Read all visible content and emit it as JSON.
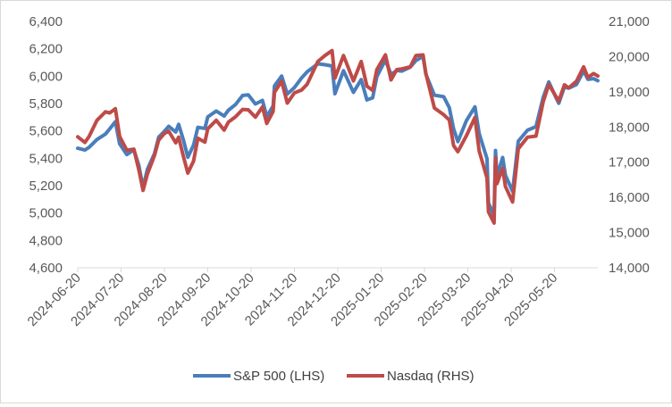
{
  "chart_data": {
    "type": "line",
    "x_tick_labels": [
      "2024-06-20",
      "2024-07-20",
      "2024-08-20",
      "2024-09-20",
      "2024-10-20",
      "2024-11-20",
      "2024-12-20",
      "2025-01-20",
      "2025-02-20",
      "2025-03-20",
      "2025-04-20",
      "2025-05-20"
    ],
    "y_left": {
      "min": 4600,
      "max": 6400,
      "step": 200,
      "tick_labels": [
        "4,600",
        "4,800",
        "5,000",
        "5,200",
        "5,400",
        "5,600",
        "5,800",
        "6,000",
        "6,200",
        "6,400"
      ]
    },
    "y_right": {
      "min": 14000,
      "max": 21000,
      "step": 1000,
      "tick_labels": [
        "14,000",
        "15,000",
        "16,000",
        "17,000",
        "18,000",
        "19,000",
        "20,000",
        "21,000"
      ]
    },
    "grid": false,
    "legend_position": "bottom",
    "series": [
      {
        "name": "S&P 500 (LHS)",
        "axis": "left",
        "color": "#4a7ebb",
        "points": [
          [
            "2024-06-20",
            5473
          ],
          [
            "2024-06-25",
            5460
          ],
          [
            "2024-06-28",
            5480
          ],
          [
            "2024-07-03",
            5537
          ],
          [
            "2024-07-09",
            5577
          ],
          [
            "2024-07-12",
            5615
          ],
          [
            "2024-07-16",
            5667
          ],
          [
            "2024-07-19",
            5505
          ],
          [
            "2024-07-24",
            5427
          ],
          [
            "2024-07-29",
            5463
          ],
          [
            "2024-08-02",
            5346
          ],
          [
            "2024-08-05",
            5186
          ],
          [
            "2024-08-08",
            5319
          ],
          [
            "2024-08-13",
            5434
          ],
          [
            "2024-08-16",
            5554
          ],
          [
            "2024-08-20",
            5597
          ],
          [
            "2024-08-23",
            5634
          ],
          [
            "2024-08-28",
            5592
          ],
          [
            "2024-08-30",
            5648
          ],
          [
            "2024-09-03",
            5528
          ],
          [
            "2024-09-06",
            5408
          ],
          [
            "2024-09-10",
            5496
          ],
          [
            "2024-09-13",
            5626
          ],
          [
            "2024-09-18",
            5618
          ],
          [
            "2024-09-20",
            5702
          ],
          [
            "2024-09-26",
            5745
          ],
          [
            "2024-10-01",
            5709
          ],
          [
            "2024-10-04",
            5751
          ],
          [
            "2024-10-09",
            5792
          ],
          [
            "2024-10-14",
            5859
          ],
          [
            "2024-10-18",
            5864
          ],
          [
            "2024-10-23",
            5797
          ],
          [
            "2024-10-28",
            5823
          ],
          [
            "2024-10-31",
            5705
          ],
          [
            "2024-11-05",
            5782
          ],
          [
            "2024-11-06",
            5929
          ],
          [
            "2024-11-11",
            6001
          ],
          [
            "2024-11-15",
            5870
          ],
          [
            "2024-11-20",
            5917
          ],
          [
            "2024-11-25",
            5987
          ],
          [
            "2024-11-29",
            6032
          ],
          [
            "2024-12-06",
            6090
          ],
          [
            "2024-12-11",
            6084
          ],
          [
            "2024-12-16",
            6074
          ],
          [
            "2024-12-18",
            5872
          ],
          [
            "2024-12-24",
            6040
          ],
          [
            "2024-12-31",
            5882
          ],
          [
            "2025-01-06",
            5975
          ],
          [
            "2025-01-10",
            5827
          ],
          [
            "2025-01-14",
            5842
          ],
          [
            "2025-01-17",
            5997
          ],
          [
            "2025-01-23",
            6119
          ],
          [
            "2025-01-27",
            6012
          ],
          [
            "2025-01-31",
            6041
          ],
          [
            "2025-02-04",
            6037
          ],
          [
            "2025-02-10",
            6066
          ],
          [
            "2025-02-14",
            6115
          ],
          [
            "2025-02-19",
            6144
          ],
          [
            "2025-02-21",
            6013
          ],
          [
            "2025-02-27",
            5861
          ],
          [
            "2025-03-03",
            5850
          ],
          [
            "2025-03-07",
            5770
          ],
          [
            "2025-03-10",
            5615
          ],
          [
            "2025-03-13",
            5522
          ],
          [
            "2025-03-19",
            5675
          ],
          [
            "2025-03-25",
            5776
          ],
          [
            "2025-03-28",
            5581
          ],
          [
            "2025-04-03",
            5397
          ],
          [
            "2025-04-04",
            5074
          ],
          [
            "2025-04-08",
            4983
          ],
          [
            "2025-04-09",
            5457
          ],
          [
            "2025-04-10",
            5268
          ],
          [
            "2025-04-14",
            5406
          ],
          [
            "2025-04-16",
            5276
          ],
          [
            "2025-04-21",
            5158
          ],
          [
            "2025-04-25",
            5525
          ],
          [
            "2025-05-01",
            5605
          ],
          [
            "2025-05-07",
            5631
          ],
          [
            "2025-05-12",
            5844
          ],
          [
            "2025-05-16",
            5958
          ],
          [
            "2025-05-21",
            5845
          ],
          [
            "2025-05-23",
            5802
          ],
          [
            "2025-05-27",
            5921
          ],
          [
            "2025-05-30",
            5912
          ],
          [
            "2025-06-05",
            5939
          ],
          [
            "2025-06-10",
            6039
          ],
          [
            "2025-06-13",
            5977
          ],
          [
            "2025-06-17",
            5982
          ],
          [
            "2025-06-20",
            5967
          ]
        ]
      },
      {
        "name": "Nasdaq (RHS)",
        "axis": "right",
        "color": "#be4b48",
        "points": [
          [
            "2024-06-20",
            17720
          ],
          [
            "2024-06-25",
            17560
          ],
          [
            "2024-06-28",
            17730
          ],
          [
            "2024-07-03",
            18190
          ],
          [
            "2024-07-09",
            18430
          ],
          [
            "2024-07-12",
            18400
          ],
          [
            "2024-07-16",
            18520
          ],
          [
            "2024-07-19",
            17730
          ],
          [
            "2024-07-24",
            17340
          ],
          [
            "2024-07-29",
            17370
          ],
          [
            "2024-08-02",
            16780
          ],
          [
            "2024-08-05",
            16200
          ],
          [
            "2024-08-08",
            16660
          ],
          [
            "2024-08-13",
            17190
          ],
          [
            "2024-08-16",
            17630
          ],
          [
            "2024-08-20",
            17820
          ],
          [
            "2024-08-23",
            17880
          ],
          [
            "2024-08-28",
            17550
          ],
          [
            "2024-08-30",
            17710
          ],
          [
            "2024-09-03",
            17140
          ],
          [
            "2024-09-06",
            16690
          ],
          [
            "2024-09-10",
            17030
          ],
          [
            "2024-09-13",
            17680
          ],
          [
            "2024-09-18",
            17570
          ],
          [
            "2024-09-20",
            17950
          ],
          [
            "2024-09-26",
            18190
          ],
          [
            "2024-10-01",
            17910
          ],
          [
            "2024-10-04",
            18140
          ],
          [
            "2024-10-09",
            18290
          ],
          [
            "2024-10-14",
            18500
          ],
          [
            "2024-10-18",
            18490
          ],
          [
            "2024-10-23",
            18280
          ],
          [
            "2024-10-28",
            18570
          ],
          [
            "2024-10-31",
            18100
          ],
          [
            "2024-11-05",
            18440
          ],
          [
            "2024-11-06",
            18990
          ],
          [
            "2024-11-11",
            19300
          ],
          [
            "2024-11-15",
            18680
          ],
          [
            "2024-11-20",
            18970
          ],
          [
            "2024-11-25",
            19050
          ],
          [
            "2024-11-29",
            19220
          ],
          [
            "2024-12-06",
            19860
          ],
          [
            "2024-12-11",
            20030
          ],
          [
            "2024-12-16",
            20170
          ],
          [
            "2024-12-18",
            19390
          ],
          [
            "2024-12-24",
            20030
          ],
          [
            "2024-12-31",
            19310
          ],
          [
            "2025-01-06",
            19860
          ],
          [
            "2025-01-10",
            19160
          ],
          [
            "2025-01-14",
            19040
          ],
          [
            "2025-01-17",
            19630
          ],
          [
            "2025-01-23",
            20050
          ],
          [
            "2025-01-27",
            19340
          ],
          [
            "2025-01-31",
            19630
          ],
          [
            "2025-02-04",
            19650
          ],
          [
            "2025-02-10",
            19710
          ],
          [
            "2025-02-14",
            20030
          ],
          [
            "2025-02-19",
            20050
          ],
          [
            "2025-02-21",
            19520
          ],
          [
            "2025-02-27",
            18540
          ],
          [
            "2025-03-03",
            18350
          ],
          [
            "2025-03-07",
            18200
          ],
          [
            "2025-03-10",
            17470
          ],
          [
            "2025-03-13",
            17300
          ],
          [
            "2025-03-19",
            17750
          ],
          [
            "2025-03-25",
            18270
          ],
          [
            "2025-03-28",
            17320
          ],
          [
            "2025-04-03",
            16550
          ],
          [
            "2025-04-04",
            15590
          ],
          [
            "2025-04-08",
            15270
          ],
          [
            "2025-04-09",
            17120
          ],
          [
            "2025-04-10",
            16390
          ],
          [
            "2025-04-14",
            16830
          ],
          [
            "2025-04-16",
            16310
          ],
          [
            "2025-04-21",
            15870
          ],
          [
            "2025-04-25",
            17380
          ],
          [
            "2025-05-01",
            17710
          ],
          [
            "2025-05-07",
            17740
          ],
          [
            "2025-05-12",
            18710
          ],
          [
            "2025-05-16",
            19210
          ],
          [
            "2025-05-21",
            18870
          ],
          [
            "2025-05-23",
            18740
          ],
          [
            "2025-05-27",
            19200
          ],
          [
            "2025-05-30",
            19110
          ],
          [
            "2025-06-05",
            19300
          ],
          [
            "2025-06-10",
            19710
          ],
          [
            "2025-06-13",
            19410
          ],
          [
            "2025-06-17",
            19520
          ],
          [
            "2025-06-20",
            19450
          ]
        ]
      }
    ]
  }
}
